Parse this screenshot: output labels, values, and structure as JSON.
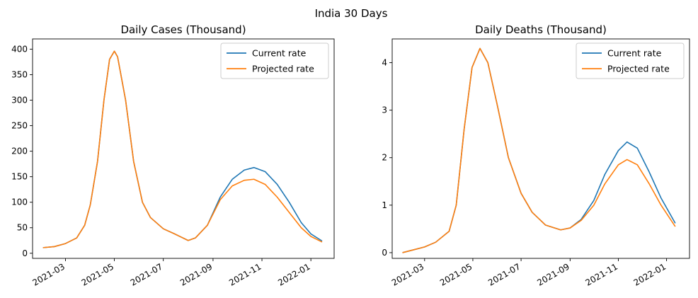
{
  "figure": {
    "title": "India 30 Days"
  },
  "chart_data": [
    {
      "type": "line",
      "title": "Daily Cases (Thousand)",
      "xlabel": "",
      "ylabel": "",
      "xlim": [
        "2021-01-19",
        "2022-01-30"
      ],
      "ylim": [
        -10,
        420
      ],
      "yticks": [
        0,
        50,
        100,
        150,
        200,
        250,
        300,
        350,
        400
      ],
      "xticks": [
        {
          "date": "2021-03-01",
          "label": "2021-03"
        },
        {
          "date": "2021-05-01",
          "label": "2021-05"
        },
        {
          "date": "2021-07-01",
          "label": "2021-07"
        },
        {
          "date": "2021-09-01",
          "label": "2021-09"
        },
        {
          "date": "2021-11-01",
          "label": "2021-11"
        },
        {
          "date": "2022-01-01",
          "label": "2022-01"
        }
      ],
      "grid": false,
      "legend": "top-right",
      "series": [
        {
          "name": "Current rate",
          "color": "#1f77b4",
          "points": [
            [
              "2021-02-01",
              11
            ],
            [
              "2021-02-15",
              13
            ],
            [
              "2021-03-01",
              19
            ],
            [
              "2021-03-15",
              30
            ],
            [
              "2021-03-25",
              55
            ],
            [
              "2021-04-01",
              95
            ],
            [
              "2021-04-10",
              180
            ],
            [
              "2021-04-18",
              300
            ],
            [
              "2021-04-25",
              380
            ],
            [
              "2021-05-01",
              396
            ],
            [
              "2021-05-05",
              385
            ],
            [
              "2021-05-15",
              300
            ],
            [
              "2021-05-25",
              180
            ],
            [
              "2021-06-05",
              100
            ],
            [
              "2021-06-15",
              70
            ],
            [
              "2021-07-01",
              48
            ],
            [
              "2021-07-15",
              38
            ],
            [
              "2021-08-01",
              25
            ],
            [
              "2021-08-10",
              30
            ],
            [
              "2021-08-25",
              55
            ],
            [
              "2021-09-10",
              110
            ],
            [
              "2021-09-25",
              145
            ],
            [
              "2021-10-10",
              163
            ],
            [
              "2021-10-22",
              168
            ],
            [
              "2021-11-05",
              160
            ],
            [
              "2021-11-20",
              135
            ],
            [
              "2021-12-05",
              100
            ],
            [
              "2021-12-20",
              60
            ],
            [
              "2022-01-01",
              38
            ],
            [
              "2022-01-15",
              24
            ]
          ]
        },
        {
          "name": "Projected rate",
          "color": "#ff7f0e",
          "points": [
            [
              "2021-02-01",
              11
            ],
            [
              "2021-02-15",
              13
            ],
            [
              "2021-03-01",
              19
            ],
            [
              "2021-03-15",
              30
            ],
            [
              "2021-03-25",
              55
            ],
            [
              "2021-04-01",
              95
            ],
            [
              "2021-04-10",
              180
            ],
            [
              "2021-04-18",
              300
            ],
            [
              "2021-04-25",
              380
            ],
            [
              "2021-05-01",
              396
            ],
            [
              "2021-05-05",
              385
            ],
            [
              "2021-05-15",
              300
            ],
            [
              "2021-05-25",
              180
            ],
            [
              "2021-06-05",
              100
            ],
            [
              "2021-06-15",
              70
            ],
            [
              "2021-07-01",
              48
            ],
            [
              "2021-07-15",
              38
            ],
            [
              "2021-08-01",
              25
            ],
            [
              "2021-08-10",
              30
            ],
            [
              "2021-08-25",
              55
            ],
            [
              "2021-09-10",
              105
            ],
            [
              "2021-09-25",
              132
            ],
            [
              "2021-10-10",
              143
            ],
            [
              "2021-10-22",
              145
            ],
            [
              "2021-11-05",
              135
            ],
            [
              "2021-11-20",
              110
            ],
            [
              "2021-12-05",
              80
            ],
            [
              "2021-12-20",
              50
            ],
            [
              "2022-01-01",
              33
            ],
            [
              "2022-01-15",
              22
            ]
          ]
        }
      ]
    },
    {
      "type": "line",
      "title": "Daily Deaths (Thousand)",
      "xlabel": "",
      "ylabel": "",
      "xlim": [
        "2021-01-19",
        "2022-01-30"
      ],
      "ylim": [
        -0.12,
        4.5
      ],
      "yticks": [
        0,
        1,
        2,
        3,
        4
      ],
      "xticks": [
        {
          "date": "2021-03-01",
          "label": "2021-03"
        },
        {
          "date": "2021-05-01",
          "label": "2021-05"
        },
        {
          "date": "2021-07-01",
          "label": "2021-07"
        },
        {
          "date": "2021-09-01",
          "label": "2021-09"
        },
        {
          "date": "2021-11-01",
          "label": "2021-11"
        },
        {
          "date": "2022-01-01",
          "label": "2022-01"
        }
      ],
      "grid": false,
      "legend": "top-right",
      "series": [
        {
          "name": "Current rate",
          "color": "#1f77b4",
          "points": [
            [
              "2021-02-01",
              0.0
            ],
            [
              "2021-02-15",
              0.06
            ],
            [
              "2021-03-01",
              0.12
            ],
            [
              "2021-03-15",
              0.22
            ],
            [
              "2021-04-01",
              0.45
            ],
            [
              "2021-04-10",
              1.0
            ],
            [
              "2021-04-20",
              2.6
            ],
            [
              "2021-04-30",
              3.9
            ],
            [
              "2021-05-10",
              4.3
            ],
            [
              "2021-05-20",
              4.0
            ],
            [
              "2021-06-01",
              3.1
            ],
            [
              "2021-06-15",
              2.0
            ],
            [
              "2021-07-01",
              1.25
            ],
            [
              "2021-07-15",
              0.85
            ],
            [
              "2021-08-01",
              0.58
            ],
            [
              "2021-08-20",
              0.48
            ],
            [
              "2021-09-01",
              0.52
            ],
            [
              "2021-09-15",
              0.7
            ],
            [
              "2021-10-01",
              1.1
            ],
            [
              "2021-10-15",
              1.65
            ],
            [
              "2021-11-01",
              2.15
            ],
            [
              "2021-11-12",
              2.33
            ],
            [
              "2021-11-25",
              2.2
            ],
            [
              "2021-12-10",
              1.7
            ],
            [
              "2021-12-25",
              1.15
            ],
            [
              "2022-01-12",
              0.62
            ]
          ]
        },
        {
          "name": "Projected rate",
          "color": "#ff7f0e",
          "points": [
            [
              "2021-02-01",
              0.0
            ],
            [
              "2021-02-15",
              0.06
            ],
            [
              "2021-03-01",
              0.12
            ],
            [
              "2021-03-15",
              0.22
            ],
            [
              "2021-04-01",
              0.45
            ],
            [
              "2021-04-10",
              1.0
            ],
            [
              "2021-04-20",
              2.6
            ],
            [
              "2021-04-30",
              3.9
            ],
            [
              "2021-05-10",
              4.3
            ],
            [
              "2021-05-20",
              4.0
            ],
            [
              "2021-06-01",
              3.1
            ],
            [
              "2021-06-15",
              2.0
            ],
            [
              "2021-07-01",
              1.25
            ],
            [
              "2021-07-15",
              0.85
            ],
            [
              "2021-08-01",
              0.58
            ],
            [
              "2021-08-20",
              0.48
            ],
            [
              "2021-09-01",
              0.52
            ],
            [
              "2021-09-15",
              0.68
            ],
            [
              "2021-10-01",
              1.0
            ],
            [
              "2021-10-15",
              1.45
            ],
            [
              "2021-11-01",
              1.85
            ],
            [
              "2021-11-12",
              1.96
            ],
            [
              "2021-11-25",
              1.85
            ],
            [
              "2021-12-10",
              1.45
            ],
            [
              "2021-12-25",
              1.0
            ],
            [
              "2022-01-12",
              0.55
            ]
          ]
        }
      ]
    }
  ]
}
